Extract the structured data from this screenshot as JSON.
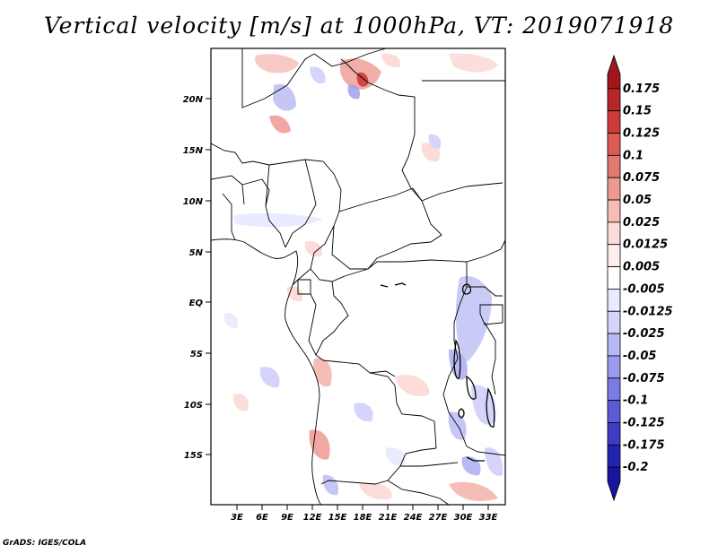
{
  "title": "Vertical velocity [m/s] at 1000hPa, VT: 2019071918",
  "footer": "GrADS: IGES/COLA",
  "map": {
    "lat_ticks": [
      "20N",
      "15N",
      "10N",
      "5N",
      "EQ",
      "5S",
      "10S",
      "15S"
    ],
    "lon_ticks": [
      "3E",
      "6E",
      "9E",
      "12E",
      "15E",
      "18E",
      "21E",
      "24E",
      "27E",
      "30E",
      "33E"
    ]
  },
  "colorbar": {
    "labels": [
      "0.175",
      "0.15",
      "0.125",
      "0.1",
      "0.075",
      "0.05",
      "0.025",
      "0.0125",
      "0.005",
      "-0.005",
      "-0.0125",
      "-0.025",
      "-0.05",
      "-0.075",
      "-0.1",
      "-0.125",
      "-0.175",
      "-0.2"
    ],
    "colors": [
      "#a0161c",
      "#b8262a",
      "#cd3b38",
      "#dc5a55",
      "#e47872",
      "#ee9992",
      "#f6bdb6",
      "#fbdcd8",
      "#ffeeee",
      "#ffffff",
      "#ebebff",
      "#d5d5fb",
      "#b8b8f4",
      "#9b9bec",
      "#7b7be3",
      "#5c5cd6",
      "#3c3cc6",
      "#2323b2",
      "#1515a0"
    ]
  }
}
